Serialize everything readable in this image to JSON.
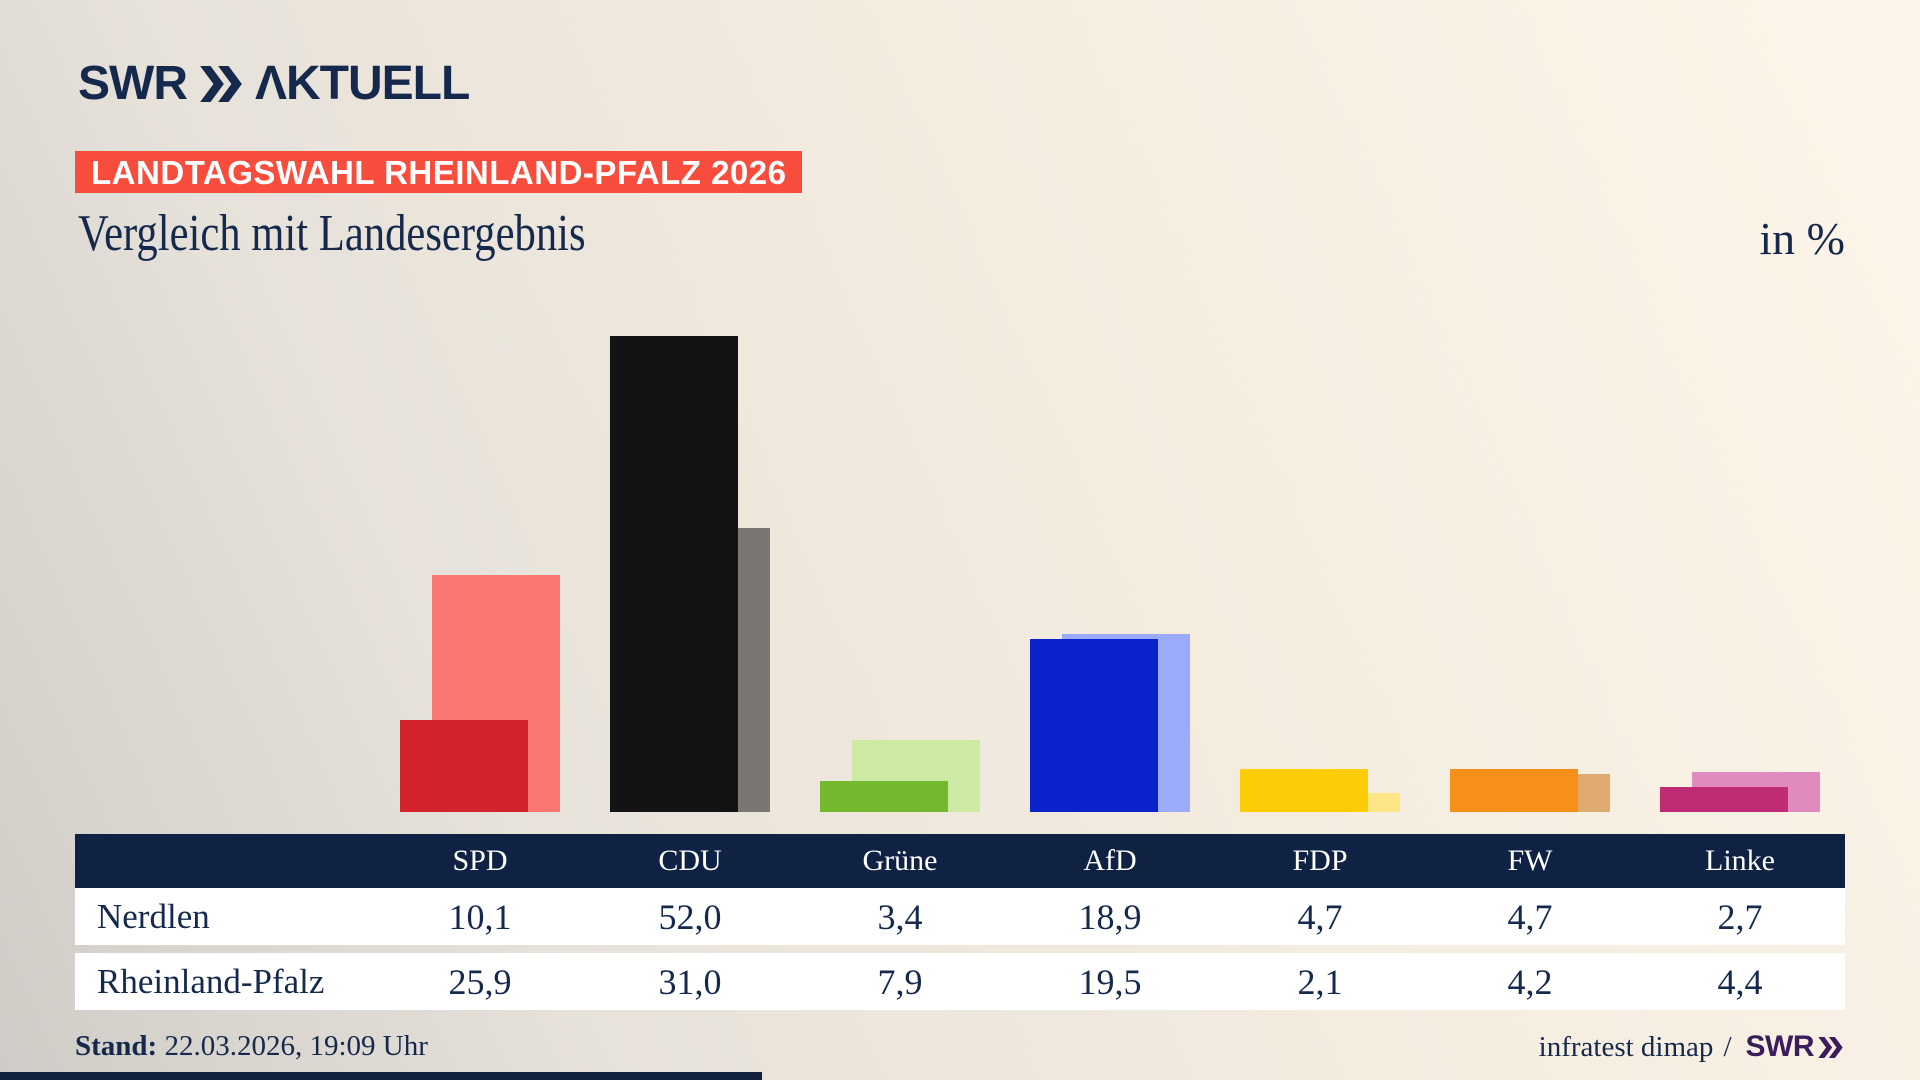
{
  "brand": {
    "channel": "SWR",
    "product": "AKTUELL"
  },
  "badge": {
    "text": "LANDTAGSWAHL RHEINLAND-PFALZ 2026",
    "background": "#f84d3c",
    "text_color": "#ffffff"
  },
  "title": "Vergleich mit Landesergebnis",
  "unit_label": "in %",
  "chart_data": {
    "type": "bar",
    "categories": [
      "SPD",
      "CDU",
      "Grüne",
      "AfD",
      "FDP",
      "FW",
      "Linke"
    ],
    "series": [
      {
        "name": "Nerdlen",
        "role": "foreground",
        "values": [
          10.1,
          52.0,
          3.4,
          18.9,
          4.7,
          4.7,
          2.7
        ],
        "colors": [
          "#d5232b",
          "#131313",
          "#73b82d",
          "#0a23cd",
          "#fecb07",
          "#f78f1b",
          "#c02c74"
        ]
      },
      {
        "name": "Rheinland-Pfalz",
        "role": "background",
        "values": [
          25.9,
          31.0,
          7.9,
          19.5,
          2.1,
          4.2,
          4.4
        ],
        "colors": [
          "#fb7872",
          "#7a7674",
          "#cdeaa4",
          "#9caafa",
          "#fee687",
          "#deaa6f",
          "#e08abd"
        ]
      }
    ],
    "ylim": [
      0,
      55
    ],
    "grid": false,
    "value_format": "german-decimal-1-comma",
    "legend_position": "table-below-chart"
  },
  "table": {
    "header_bg": "#0f2243",
    "header_text_color": "#ffffff",
    "row_bg": "#ffffff",
    "text_color": "#14294c"
  },
  "footer": {
    "stand_label": "Stand:",
    "stand_value": "22.03.2026, 19:09 Uhr",
    "source": "infratest dimap",
    "separator": "/",
    "source_brand": "SWR"
  },
  "colors": {
    "navy": "#14294c",
    "badge_red": "#f84d3c",
    "brand_purple": "#3b1d5c"
  }
}
